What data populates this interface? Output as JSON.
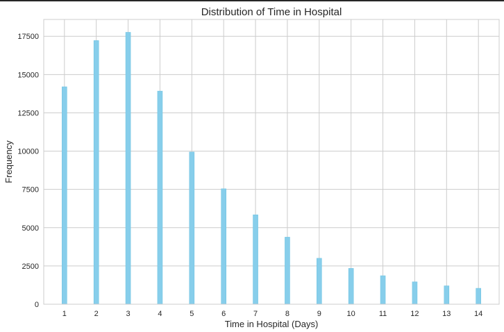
{
  "chart_data": {
    "type": "bar",
    "title": "Distribution of Time in Hospital",
    "xlabel": "Time in Hospital (Days)",
    "ylabel": "Frequency",
    "categories": [
      "1",
      "2",
      "3",
      "4",
      "5",
      "6",
      "7",
      "8",
      "9",
      "10",
      "11",
      "12",
      "13",
      "14"
    ],
    "values": [
      14200,
      17220,
      17760,
      13920,
      9940,
      7540,
      5840,
      4380,
      3000,
      2340,
      1860,
      1460,
      1200,
      1040
    ],
    "ylim": [
      0,
      18600
    ],
    "xlim": [
      0.35,
      14.65
    ],
    "yticks": [
      0,
      2500,
      5000,
      7500,
      10000,
      12500,
      15000,
      17500
    ],
    "grid": true,
    "bar_color": "#87ceeb",
    "bar_edge_color": "#72c5e3"
  }
}
